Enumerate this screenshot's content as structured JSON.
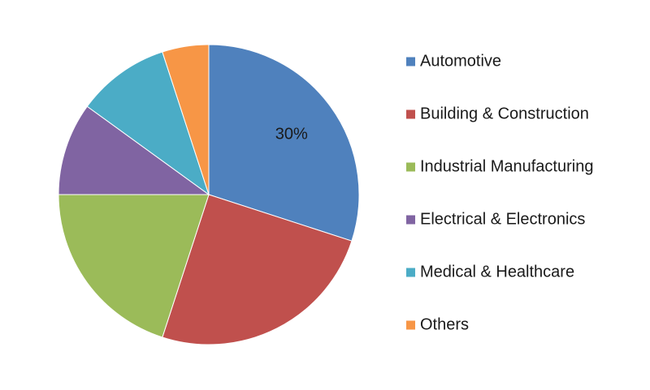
{
  "chart_data": {
    "type": "pie",
    "title": "",
    "categories": [
      "Automotive",
      "Building & Construction",
      "Industrial Manufacturing",
      "Electrical & Electronics",
      "Medical & Healthcare",
      "Others"
    ],
    "values": [
      30,
      25,
      20,
      10,
      10,
      5
    ],
    "colors": [
      "#4f81bd",
      "#c0504d",
      "#9bbb59",
      "#8064a2",
      "#4bacc6",
      "#f79646"
    ],
    "data_labels": [
      "30%",
      "",
      "",
      "",
      "",
      ""
    ],
    "legend_position": "right",
    "start_angle": "12 o'clock",
    "direction": "clockwise"
  }
}
